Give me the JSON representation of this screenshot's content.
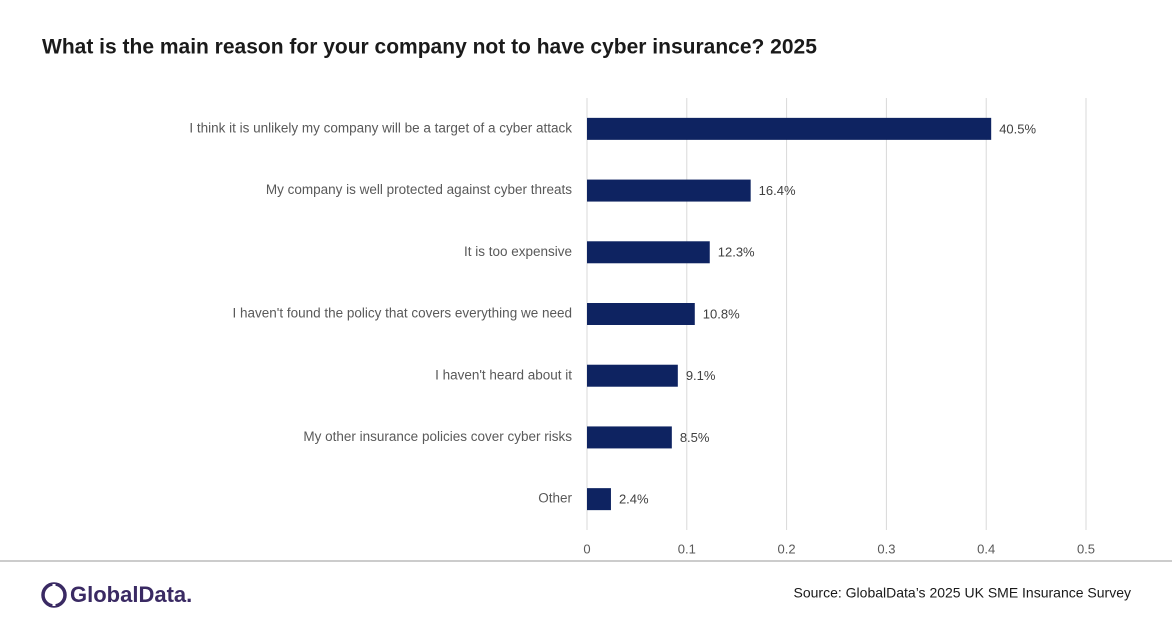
{
  "chart_data": {
    "type": "barh",
    "title": "What is the main reason for your company not to have cyber insurance? 2025",
    "categories": [
      "I think it is unlikely my company will be a target of a cyber attack",
      "My company is well protected against cyber threats",
      "It is too expensive",
      "I haven't found the policy that covers everything we need",
      "I haven't heard about it",
      "My other insurance policies cover cyber risks",
      "Other"
    ],
    "values": [
      0.405,
      0.164,
      0.123,
      0.108,
      0.091,
      0.085,
      0.024
    ],
    "value_labels": [
      "40.5%",
      "16.4%",
      "12.3%",
      "10.8%",
      "9.1%",
      "8.5%",
      "2.4%"
    ],
    "color": "#0e2361",
    "xlim": [
      0,
      0.5
    ],
    "xticks": [
      0,
      0.1,
      0.2,
      0.3,
      0.4,
      0.5
    ],
    "grid": true,
    "source": "Source: GlobalData’s 2025 UK SME Insurance Survey"
  },
  "logo": "GlobalData."
}
